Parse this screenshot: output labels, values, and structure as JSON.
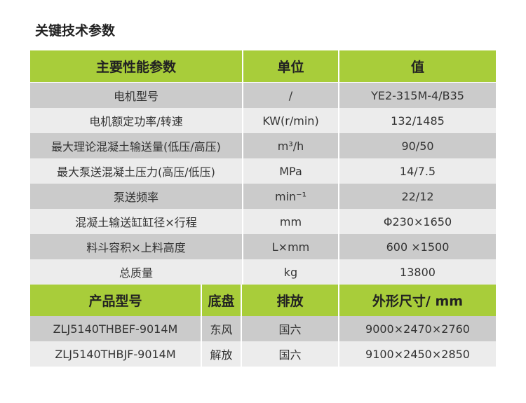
{
  "title": "关键技术参数",
  "colors": {
    "header": "#a8cd3a",
    "row_dark": "#cbcbcb",
    "row_light": "#ececec"
  },
  "params": {
    "headers": [
      "主要性能参数",
      "单位",
      "值"
    ],
    "rows": [
      [
        "电机型号",
        "/",
        "YE2-315M-4/B35"
      ],
      [
        "电机额定功率/转速",
        "KW(r/min)",
        "132/1485"
      ],
      [
        "最大理论混凝土输送量(低压/高压)",
        "m³/h",
        "90/50"
      ],
      [
        "最大泵送混凝土压力(高压/低压)",
        "MPa",
        "14/7.5"
      ],
      [
        "泵送频率",
        "min⁻¹",
        "22/12"
      ],
      [
        "混凝土输送缸缸径×行程",
        "mm",
        "Φ230×1650"
      ],
      [
        "料斗容积×上料高度",
        "L×mm",
        "600 ×1500"
      ],
      [
        "总质量",
        "kg",
        "13800"
      ]
    ]
  },
  "models": {
    "headers": [
      "产品型号",
      "底盘",
      "排放",
      "外形尺寸/ mm"
    ],
    "rows": [
      [
        "ZLJ5140THBEF-9014M",
        "东风",
        "国六",
        "9000×2470×2760"
      ],
      [
        "ZLJ5140THBJF-9014M",
        "解放",
        "国六",
        "9100×2450×2850"
      ]
    ]
  }
}
